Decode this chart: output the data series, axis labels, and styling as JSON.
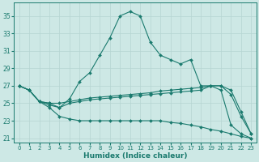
{
  "xlabel": "Humidex (Indice chaleur)",
  "xlim": [
    -0.5,
    23.5
  ],
  "ylim": [
    20.5,
    36.5
  ],
  "yticks": [
    21,
    23,
    25,
    27,
    29,
    31,
    33,
    35
  ],
  "xticks": [
    0,
    1,
    2,
    3,
    4,
    5,
    6,
    7,
    8,
    9,
    10,
    11,
    12,
    13,
    14,
    15,
    16,
    17,
    18,
    19,
    20,
    21,
    22,
    23
  ],
  "bg_color": "#cde8e5",
  "line_color": "#1a7a6e",
  "grid_color": "#b5d5d2",
  "lines": [
    {
      "x": [
        0,
        1,
        2,
        3,
        4,
        5,
        6,
        7,
        8,
        9,
        10,
        11,
        12,
        13,
        14,
        15,
        16,
        17,
        18,
        19,
        20,
        21,
        22,
        23
      ],
      "y": [
        27.0,
        26.5,
        25.2,
        25.0,
        24.5,
        25.5,
        27.5,
        28.5,
        30.5,
        32.5,
        35.0,
        35.5,
        35.0,
        32.0,
        30.5,
        30.0,
        29.5,
        30.0,
        27.0,
        27.0,
        26.5,
        22.5,
        21.5,
        21.0
      ]
    },
    {
      "x": [
        0,
        1,
        2,
        3,
        4,
        5,
        6,
        7,
        8,
        9,
        10,
        11,
        12,
        13,
        14,
        15,
        16,
        17,
        18,
        19,
        20,
        21,
        22,
        23
      ],
      "y": [
        27.0,
        26.5,
        25.2,
        25.0,
        25.0,
        25.2,
        25.4,
        25.6,
        25.7,
        25.8,
        25.9,
        26.0,
        26.1,
        26.2,
        26.4,
        26.5,
        26.6,
        26.7,
        26.8,
        27.0,
        27.0,
        26.5,
        24.0,
        21.5
      ]
    },
    {
      "x": [
        0,
        1,
        2,
        3,
        4,
        5,
        6,
        7,
        8,
        9,
        10,
        11,
        12,
        13,
        14,
        15,
        16,
        17,
        18,
        19,
        20,
        21,
        22,
        23
      ],
      "y": [
        27.0,
        26.5,
        25.2,
        24.8,
        24.5,
        25.0,
        25.2,
        25.4,
        25.5,
        25.6,
        25.7,
        25.8,
        25.9,
        26.0,
        26.1,
        26.2,
        26.3,
        26.4,
        26.5,
        27.0,
        27.0,
        26.0,
        23.5,
        21.5
      ]
    },
    {
      "x": [
        0,
        1,
        2,
        3,
        4,
        5,
        6,
        7,
        8,
        9,
        10,
        11,
        12,
        13,
        14,
        15,
        16,
        17,
        18,
        19,
        20,
        21,
        22,
        23
      ],
      "y": [
        27.0,
        26.5,
        25.2,
        24.5,
        23.5,
        23.2,
        23.0,
        23.0,
        23.0,
        23.0,
        23.0,
        23.0,
        23.0,
        23.0,
        23.0,
        22.8,
        22.7,
        22.5,
        22.3,
        22.0,
        21.8,
        21.5,
        21.2,
        21.0
      ]
    }
  ]
}
